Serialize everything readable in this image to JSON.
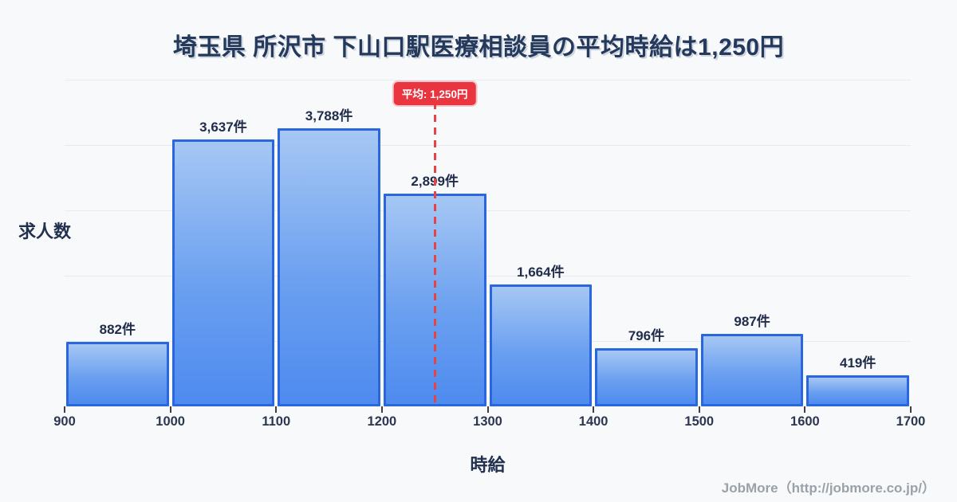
{
  "title": "埼玉県 所沢市 下山口駅医療相談員の平均時給は1,250円",
  "y_axis_label": "求人数",
  "x_axis_label": "時給",
  "footer": "JobMore（http://jobmore.co.jp/）",
  "average_badge_label": "平均: 1,250円",
  "colors": {
    "background": "#f8f9fb",
    "bar_gradient_top": "#a6c7f4",
    "bar_gradient_bottom": "#4e8bef",
    "bar_border": "#2a66dd",
    "average_badge_bg": "#e8353f",
    "average_dash": "#e64444",
    "gridline": "#e7eaf1",
    "title_text": "#24395b",
    "bar_label_text": "#1f2c4a",
    "tick_text": "#2b3750",
    "footer_text": "#9aa1a9"
  },
  "chart_data": {
    "type": "bar",
    "title": "埼玉県 所沢市 下山口駅医療相談員の平均時給は1,250円",
    "xlabel": "時給",
    "ylabel": "求人数",
    "bin_edges": [
      900,
      1000,
      1100,
      1200,
      1300,
      1400,
      1500,
      1600,
      1700
    ],
    "x_tick_labels": [
      "900",
      "1000",
      "1100",
      "1200",
      "1300",
      "1400",
      "1500",
      "1600",
      "1700"
    ],
    "values": [
      882,
      3637,
      3788,
      2899,
      1664,
      796,
      987,
      419
    ],
    "bar_labels": [
      "882件",
      "3,637件",
      "3,788件",
      "2,899件",
      "1,664件",
      "796件",
      "987件",
      "419件"
    ],
    "average": 1250,
    "average_label": "平均: 1,250円",
    "xlim": [
      900,
      1700
    ],
    "ylim": [
      0,
      4450
    ],
    "grid": "horizontal",
    "gridline_count": 5,
    "legend": "none"
  }
}
